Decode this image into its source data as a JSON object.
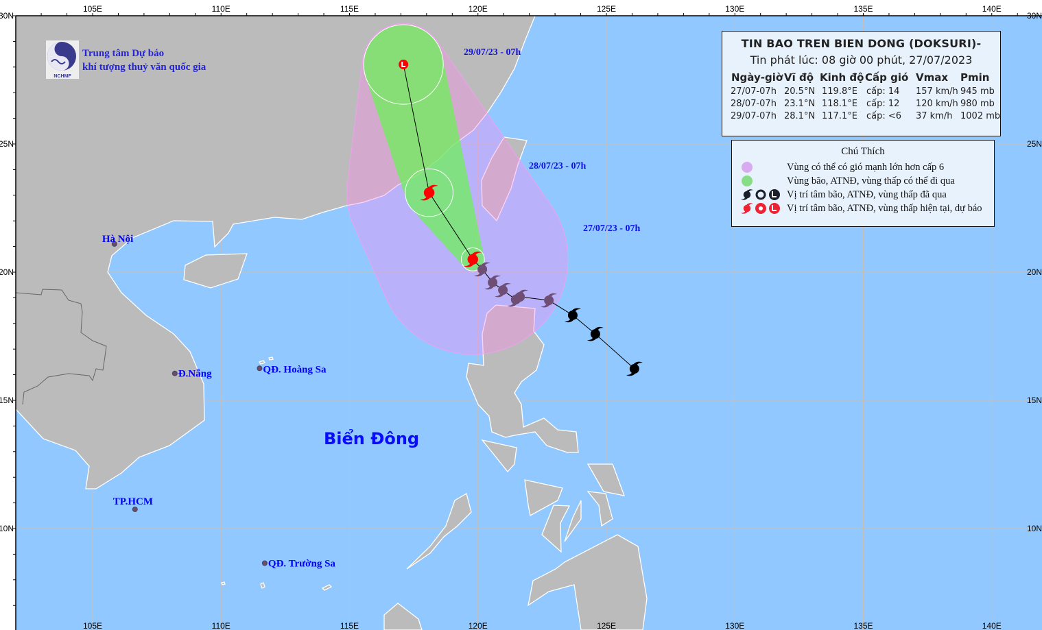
{
  "header": {
    "org_line1": "Trung tâm Dự báo",
    "org_line2": "khí tượng thuỷ văn quốc gia",
    "logo_text": "NCHMF"
  },
  "map": {
    "colors": {
      "sea": "#90c8ff",
      "land": "#bbbbbb",
      "coast": "#ffffff",
      "grid": "#c8beb4",
      "wind_zone": "#fe8af0",
      "storm_zone": "#6ef05a",
      "current_forecast": "#ff0000",
      "past": "#000000"
    },
    "lon_range": [
      102,
      141.7
    ],
    "lat_range": [
      6.3,
      30
    ],
    "lon_labels": [
      "105E",
      "110E",
      "115E",
      "120E",
      "125E",
      "130E",
      "135E",
      "140E"
    ],
    "lon_values": [
      105,
      110,
      115,
      120,
      125,
      130,
      135,
      140
    ],
    "lat_labels": [
      "30N",
      "25N",
      "20N",
      "15N",
      "10N"
    ],
    "lat_values": [
      30,
      25,
      20,
      15,
      10
    ],
    "sea_name": "Biển Đông",
    "places": [
      {
        "name": "Hà Nội",
        "lat": 21.1,
        "lon": 105.85
      },
      {
        "name": "Đ.Nẵng",
        "lat": 16.05,
        "lon": 108.2
      },
      {
        "name": "QĐ. Hoàng Sa",
        "lat": 16.25,
        "lon": 111.5
      },
      {
        "name": "TP.HCM",
        "lat": 10.75,
        "lon": 106.65
      },
      {
        "name": "QĐ. Trường Sa",
        "lat": 8.65,
        "lon": 111.7
      }
    ],
    "date_labels": [
      "29/07/23 - 07h",
      "28/07/23 - 07h",
      "27/07/23 - 07h"
    ],
    "past_track": [
      {
        "lat": 16.23,
        "lon": 126.09
      },
      {
        "lat": 17.59,
        "lon": 124.57
      },
      {
        "lat": 18.32,
        "lon": 123.69
      },
      {
        "lat": 18.9,
        "lon": 122.76
      },
      {
        "lat": 19.04,
        "lon": 121.64
      },
      {
        "lat": 18.93,
        "lon": 121.47
      },
      {
        "lat": 19.3,
        "lon": 120.97
      },
      {
        "lat": 19.6,
        "lon": 120.57
      },
      {
        "lat": 20.11,
        "lon": 120.17
      }
    ],
    "forecast_track": [
      {
        "lat": 20.5,
        "lon": 119.8,
        "symbol": "typhoon",
        "wind_radius_deg": 3.7,
        "storm_radius_deg": 0.45
      },
      {
        "lat": 23.1,
        "lon": 118.1,
        "symbol": "typhoon",
        "wind_radius_deg": 3.2,
        "storm_radius_deg": 0.93
      },
      {
        "lat": 28.1,
        "lon": 117.1,
        "symbol": "low",
        "wind_radius_deg": 1.6,
        "storm_radius_deg": 1.55
      }
    ]
  },
  "info": {
    "title": "TIN BAO TREN BIEN DONG (DOKSURI)-",
    "subtitle": "Tin phát lúc: 08 giờ 00 phút, 27/07/2023",
    "headers": [
      "Ngày-giờ",
      "Vĩ độ",
      "Kinh độ",
      "Cấp gió",
      "Vmax",
      "Pmin"
    ],
    "rows": [
      [
        "27/07-07h",
        "20.5°N",
        "119.8°E",
        "cấp: 14",
        "157 km/h",
        "945 mb"
      ],
      [
        "28/07-07h",
        "23.1°N",
        "118.1°E",
        "cấp: 12",
        "120 km/h",
        "980 mb"
      ],
      [
        "29/07-07h",
        "28.1°N",
        "117.1°E",
        "cấp: <6",
        "37 km/h",
        "1002 mb"
      ]
    ]
  },
  "legend": {
    "title": "Chú Thích",
    "items": [
      {
        "label": "Vùng có thể có gió mạnh lớn hơn cấp 6",
        "color": "#d8aaf0"
      },
      {
        "label": "Vùng bão, ATNĐ, vùng thấp có thể đi qua",
        "color": "#88dd88"
      },
      {
        "label": "Vị trí tâm bão, ATNĐ, vùng thấp đã qua",
        "color": "#111111"
      },
      {
        "label": "Vị trí tâm bão, ATNĐ, vùng thấp hiện tại, dự báo",
        "color": "#ee2233"
      }
    ]
  }
}
